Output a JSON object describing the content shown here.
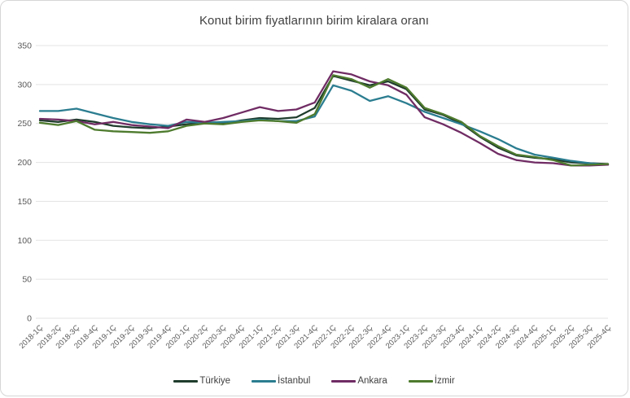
{
  "window": {
    "background": "#ffffff",
    "border_color": "#d6d6d6"
  },
  "chart": {
    "title": "Konut birim fiyatlarının birim kiralara oranı"
  },
  "chart_data": {
    "type": "line",
    "title": "Konut birim fiyatlarının birim kiralara oranı",
    "xlabel": "",
    "ylabel": "",
    "ylim": [
      0,
      350
    ],
    "ytick_step": 50,
    "grid": "horizontal",
    "legend_position": "bottom",
    "categories": [
      "2018-1Ç",
      "2018-2Ç",
      "2018-3Ç",
      "2018-4Ç",
      "2019-1Ç",
      "2019-2Ç",
      "2019-3Ç",
      "2019-4Ç",
      "2020-1Ç",
      "2020-2Ç",
      "2020-3Ç",
      "2020-4Ç",
      "2021-1Ç",
      "2021-2Ç",
      "2021-3Ç",
      "2021-4Ç",
      "2022-1Ç",
      "2022-2Ç",
      "2022-3Ç",
      "2022-4Ç",
      "2023-1Ç",
      "2023-2Ç",
      "2023-3Ç",
      "2023-4Ç",
      "2024-1Ç",
      "2024-2Ç",
      "2024-3Ç",
      "2024-4Ç",
      "2025-1Ç",
      "2025-2Ç",
      "2025-3Ç",
      "2025-4Ç"
    ],
    "series": [
      {
        "name": "Türkiye",
        "color": "#1f3c2c",
        "values": [
          254,
          252,
          255,
          252,
          247,
          245,
          244,
          246,
          249,
          251,
          250,
          254,
          257,
          256,
          258,
          270,
          311,
          305,
          299,
          304,
          294,
          268,
          261,
          250,
          233,
          219,
          209,
          206,
          204,
          200,
          199,
          198
        ]
      },
      {
        "name": "İstanbul",
        "color": "#2b7d90",
        "values": [
          266,
          266,
          269,
          263,
          257,
          252,
          249,
          247,
          252,
          251,
          252,
          253,
          255,
          253,
          253,
          259,
          299,
          292,
          279,
          285,
          276,
          265,
          257,
          249,
          240,
          230,
          218,
          210,
          206,
          202,
          199,
          197
        ]
      },
      {
        "name": "Ankara",
        "color": "#702c64",
        "values": [
          256,
          255,
          253,
          249,
          252,
          248,
          246,
          244,
          255,
          252,
          257,
          264,
          271,
          266,
          268,
          277,
          317,
          313,
          304,
          299,
          287,
          258,
          249,
          238,
          225,
          211,
          203,
          200,
          199,
          196,
          196,
          197
        ]
      },
      {
        "name": "İzmir",
        "color": "#4e7b2e",
        "values": [
          251,
          248,
          253,
          242,
          240,
          239,
          238,
          240,
          247,
          250,
          249,
          252,
          254,
          253,
          251,
          262,
          312,
          307,
          296,
          307,
          296,
          270,
          262,
          252,
          234,
          221,
          210,
          207,
          203,
          196,
          197,
          198
        ]
      }
    ],
    "colors": {
      "gridline": "#e3e3e3",
      "tick_label": "#595959",
      "title": "#404040"
    }
  }
}
